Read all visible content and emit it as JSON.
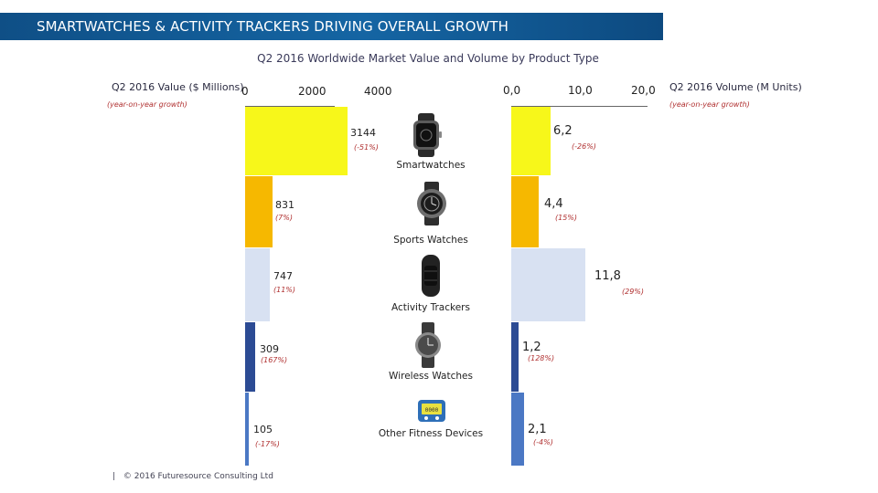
{
  "banner": {
    "title": "SMARTWATCHES & ACTIVITY TRACKERS DRIVING OVERALL GROWTH"
  },
  "chart_data": {
    "type": "bar",
    "title": "Q2 2016 Worldwide Market Value and Volume by Product Type",
    "left_axis": {
      "label": "Q2 2016 Value ($ Millions)",
      "note": "(year-on-year growth)",
      "ticks": [
        "0",
        "2000",
        "4000"
      ],
      "range": [
        0,
        4000
      ]
    },
    "right_axis": {
      "label": "Q2 2016 Volume (M Units)",
      "note": "(year-on-year growth)",
      "ticks": [
        "0,0",
        "10,0",
        "20,0"
      ],
      "range": [
        0,
        20
      ]
    },
    "categories": [
      {
        "name": "Smartwatches",
        "value": 3144,
        "value_label": "3144",
        "value_growth": "(-51%)",
        "volume": 6.2,
        "volume_label": "6,2",
        "volume_growth": "(-26%)",
        "color": "#f7f71a"
      },
      {
        "name": "Sports Watches",
        "value": 831,
        "value_label": "831",
        "value_growth": "(7%)",
        "volume": 4.4,
        "volume_label": "4,4",
        "volume_growth": "(15%)",
        "color": "#f6b800"
      },
      {
        "name": "Activity Trackers",
        "value": 747,
        "value_label": "747",
        "value_growth": "(11%)",
        "volume": 11.8,
        "volume_label": "11,8",
        "volume_growth": "(29%)",
        "color": "#d8e1f2"
      },
      {
        "name": "Wireless Watches",
        "value": 309,
        "value_label": "309",
        "value_growth": "(167%)",
        "volume": 1.2,
        "volume_label": "1,2",
        "volume_growth": "(128%)",
        "color": "#2c4b94"
      },
      {
        "name": "Other Fitness Devices",
        "value": 105,
        "value_label": "105",
        "value_growth": "(-17%)",
        "volume": 2.1,
        "volume_label": "2,1",
        "volume_growth": "(-4%)",
        "color": "#4b78c4"
      }
    ]
  },
  "icons": {
    "smartwatch": "smartwatch-icon",
    "sports_watch": "sports-watch-icon",
    "tracker": "activity-tracker-icon",
    "wireless": "wireless-watch-icon",
    "other": "fitness-device-icon"
  },
  "footer": {
    "text": "© 2016 Futuresource Consulting Ltd",
    "separator": "|"
  }
}
